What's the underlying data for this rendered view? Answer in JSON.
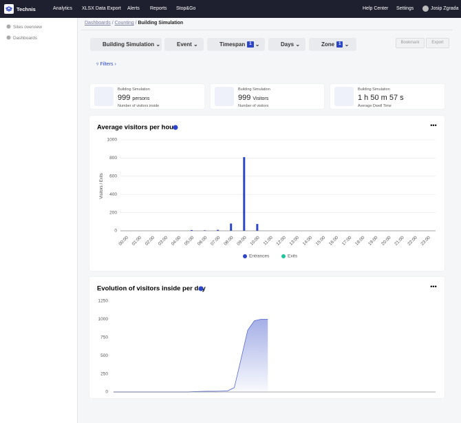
{
  "navbar": {
    "brand": "Technis",
    "links": [
      "Analytics",
      "XLSX Data Export",
      "Alerts",
      "Reports",
      "Stop&Go"
    ],
    "right": [
      "Help Center",
      "Settings"
    ],
    "user": "Josip Zgrada"
  },
  "sidebar": {
    "items": [
      "Sites overview",
      "Dashboards"
    ]
  },
  "breadcrumb": [
    "Dashboards",
    "Counting",
    "Building Simulation"
  ],
  "toolbar": {
    "filters": [
      {
        "label": "Building Simulation"
      },
      {
        "label": "Event"
      },
      {
        "label": "Timespan",
        "badge": 1
      },
      {
        "label": "Days"
      },
      {
        "label": "Zone",
        "badge": 1
      }
    ],
    "actions": [
      "Bookmark",
      "Export"
    ],
    "filters_link": "Filters"
  },
  "kpis": [
    {
      "title": "Building Simulation",
      "value": 999,
      "unit": "persons",
      "caption": "Number of visitors inside"
    },
    {
      "title": "Building Simulation",
      "value": 999,
      "unit": "Visitors",
      "caption": "Number of visitors"
    },
    {
      "title": "Building Simulation",
      "value": "1 h 50 m 57 s",
      "caption": "Average Dwell Time"
    }
  ],
  "chart_data": [
    {
      "type": "bar",
      "title": "Average visitors per hour",
      "y_label": "Visitors / Exits",
      "categories": [
        "00:00",
        "01:00",
        "02:00",
        "03:00",
        "04:00",
        "05:00",
        "06:00",
        "07:00",
        "08:00",
        "09:00",
        "10:00",
        "11:00",
        "12:00",
        "13:00",
        "14:00",
        "15:00",
        "16:00",
        "17:00",
        "18:00",
        "19:00",
        "20:00",
        "21:00",
        "22:00",
        "23:00"
      ],
      "series": [
        {
          "name": "Entrances",
          "color": "#2d46c8",
          "values": [
            0,
            0,
            0,
            0,
            0,
            8,
            5,
            10,
            80,
            810,
            75,
            0,
            0,
            0,
            0,
            0,
            0,
            0,
            0,
            0,
            0,
            0,
            0,
            0
          ]
        },
        {
          "name": "Exits",
          "color": "#1fc79b",
          "values": [
            0,
            0,
            0,
            0,
            0,
            0,
            0,
            0,
            0,
            0,
            0,
            0,
            0,
            0,
            0,
            0,
            0,
            0,
            0,
            0,
            0,
            0,
            0,
            0
          ]
        }
      ],
      "ylim": [
        0,
        1000
      ],
      "yticks": [
        0,
        200,
        400,
        600,
        800,
        1000
      ],
      "grid": true
    },
    {
      "type": "area",
      "title": "Evolution of visitors inside per day",
      "color": "#8e9be0",
      "values": [
        0,
        0,
        0,
        0,
        0,
        0,
        0,
        0,
        0,
        0,
        0,
        0,
        5,
        8,
        10,
        10,
        12,
        15,
        60,
        450,
        850,
        980,
        1000,
        1000,
        null,
        null,
        null,
        null,
        null,
        null,
        null,
        null,
        null,
        null,
        null,
        null,
        null,
        null,
        null,
        null,
        null,
        null,
        null,
        null,
        null,
        null,
        null,
        null
      ],
      "ylim": [
        0,
        1250
      ],
      "yticks": [
        0,
        250,
        500,
        750,
        1000,
        1250
      ],
      "grid": false
    }
  ]
}
